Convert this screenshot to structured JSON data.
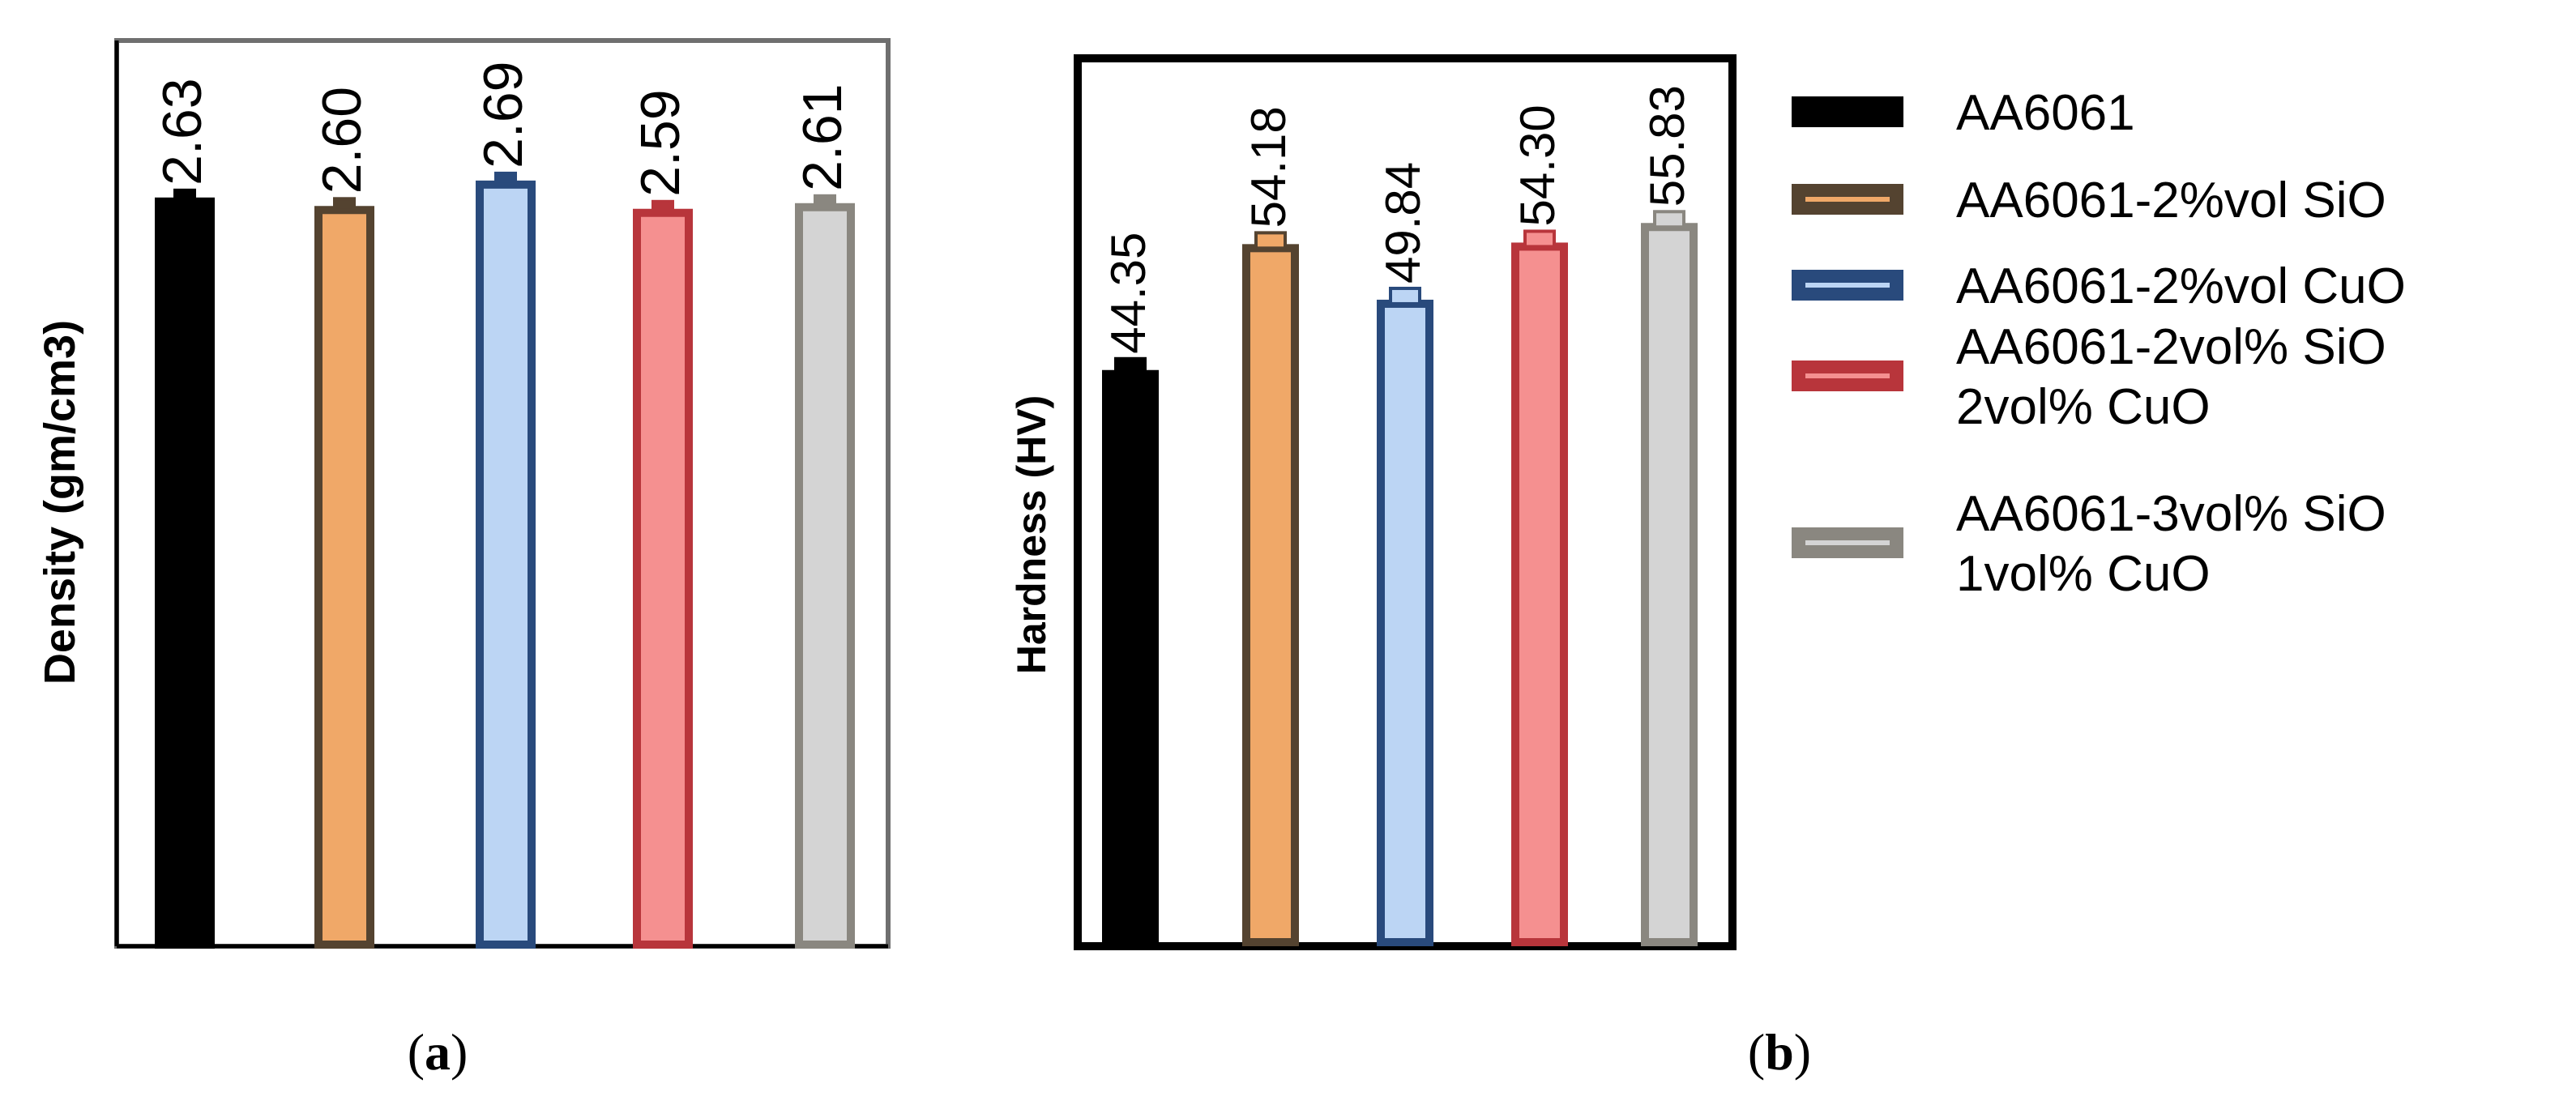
{
  "chart_data": [
    {
      "type": "bar",
      "panel_caption": "a",
      "title": "",
      "xlabel": "",
      "ylabel": "Density (gm/cm3)",
      "ylim": [
        0,
        3.2
      ],
      "categories": [
        "AA6061",
        "AA6061-2%vol SiO",
        "AA6061-2%vol CuO",
        "AA6061-2vol% SiO 2vol% CuO",
        "AA6061-3vol% SiO 1vol% CuO"
      ],
      "values": [
        2.63,
        2.6,
        2.69,
        2.59,
        2.61
      ],
      "data_labels": [
        "2.63",
        "2.60",
        "2.69",
        "2.59",
        "2.61"
      ],
      "error": 0.04,
      "grid": false,
      "ticks_visible": false
    },
    {
      "type": "bar",
      "panel_caption": "b",
      "title": "",
      "xlabel": "",
      "ylabel": "Hardness (HV)",
      "ylim": [
        0,
        69
      ],
      "categories": [
        "AA6061",
        "AA6061-2%vol SiO",
        "AA6061-2%vol CuO",
        "AA6061-2vol% SiO 2vol% CuO",
        "AA6061-3vol% SiO 1vol% CuO"
      ],
      "values": [
        44.35,
        54.18,
        49.84,
        54.3,
        55.83
      ],
      "data_labels": [
        "44.35",
        "54.18",
        "49.84",
        "54.30",
        "55.83"
      ],
      "error": 1.2,
      "grid": false,
      "ticks_visible": false
    }
  ],
  "legend": {
    "placement": "right",
    "items": [
      {
        "lines": [
          "AA6061"
        ],
        "fill": "#000000",
        "edge": "#000000",
        "stripe": "#000000"
      },
      {
        "lines": [
          "AA6061-2%vol SiO"
        ],
        "fill": "#f0a868",
        "edge": "#544330",
        "stripe": "#f0a868"
      },
      {
        "lines": [
          "AA6061-2%vol CuO"
        ],
        "fill": "#bcd5f4",
        "edge": "#294a7c",
        "stripe": "#bcd5f4"
      },
      {
        "lines": [
          "AA6061-2vol% SiO",
          "2vol% CuO"
        ],
        "fill": "#f59090",
        "edge": "#b8353b",
        "stripe": "#f59090"
      },
      {
        "lines": [
          "AA6061-3vol% SiO",
          "1vol% CuO"
        ],
        "fill": "#d4d4d4",
        "edge": "#8a8780",
        "stripe": "#d4d4d4"
      }
    ]
  }
}
